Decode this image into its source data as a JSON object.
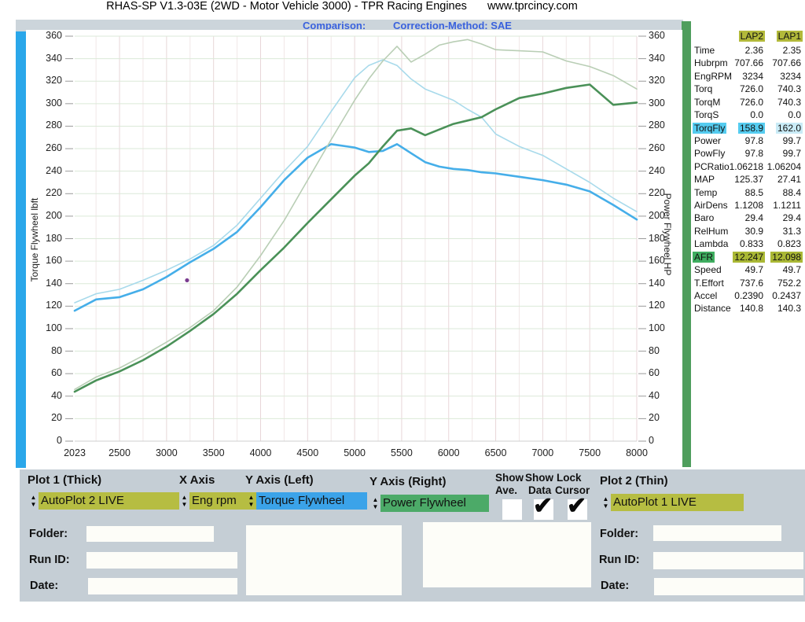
{
  "title": {
    "text": "RHAS-SP V1.3-03E  (2WD - Motor Vehicle 3000) - TPR Racing Engines",
    "url": "www.tprcincy.com"
  },
  "subtitle": {
    "comparison": "Comparison:",
    "correction": "Correction-Method: SAE"
  },
  "icons": {
    "spinner_up": "▲",
    "spinner_down": "▼",
    "check_glyph": "✔"
  },
  "colors": {
    "left_strip": "#2aa7ea",
    "right_strip": "#4f9e5d",
    "panel": "#c5ced5",
    "olive": "#b6bd42",
    "dropdown_blue": "#3ba3e9",
    "dropdown_green": "#4caa68",
    "hl_cyan": "#55ccf0",
    "hl_green": "#3fae60",
    "hl_olive": "#aab835",
    "subtitle_blue": "#3a62dd"
  },
  "chart_data": {
    "type": "line",
    "xlabel": "Eng rpm",
    "ylabel_left": "Torque Flywheel lbft",
    "ylabel_right": "Power Flywheel HP",
    "xlim": [
      2023,
      8000
    ],
    "ylim": [
      0,
      360
    ],
    "y_tick_step": 20,
    "x_ticks": [
      2023,
      2500,
      3000,
      3500,
      4000,
      4500,
      5000,
      5500,
      6000,
      6500,
      7000,
      7500,
      8000
    ],
    "grid": true,
    "x": [
      2023,
      2250,
      2500,
      2750,
      3000,
      3250,
      3500,
      3750,
      4000,
      4250,
      4500,
      4750,
      5000,
      5150,
      5300,
      5450,
      5600,
      5750,
      5900,
      6050,
      6200,
      6350,
      6500,
      6750,
      7000,
      7250,
      7500,
      7750,
      8000
    ],
    "series": [
      {
        "name": "LAP2 Torque Flywheel (thick)",
        "axis": "left",
        "color": "#45aee9",
        "width": 2.6,
        "values": [
          116,
          126,
          128,
          135,
          146,
          159,
          171,
          186,
          208,
          232,
          252,
          264,
          261,
          257,
          258,
          264,
          256,
          248,
          244,
          242,
          241,
          239,
          238,
          235,
          232,
          228,
          222,
          210,
          197
        ]
      },
      {
        "name": "LAP1 Torque Flywheel (thin)",
        "axis": "left",
        "color": "#a8daeb",
        "width": 1.6,
        "values": [
          123,
          131,
          135,
          143,
          152,
          162,
          174,
          192,
          216,
          240,
          262,
          293,
          323,
          334,
          339,
          334,
          322,
          313,
          308,
          303,
          295,
          288,
          273,
          262,
          254,
          242,
          230,
          216,
          204
        ]
      },
      {
        "name": "LAP2 Power Flywheel (thick)",
        "axis": "right",
        "color": "#4a9158",
        "width": 2.6,
        "values": [
          44,
          54,
          62,
          72,
          84,
          98,
          113,
          131,
          152,
          172,
          194,
          215,
          236,
          247,
          262,
          276,
          278,
          272,
          277,
          282,
          285,
          288,
          295,
          305,
          309,
          314,
          317,
          299,
          301
        ]
      },
      {
        "name": "LAP1 Power Flywheel (thin)",
        "axis": "right",
        "color": "#b9ceb5",
        "width": 1.6,
        "values": [
          46,
          57,
          65,
          76,
          88,
          101,
          116,
          137,
          165,
          196,
          232,
          268,
          303,
          322,
          338,
          351,
          337,
          344,
          352,
          355,
          357,
          353,
          348,
          347,
          346,
          338,
          333,
          325,
          313
        ]
      }
    ],
    "cursor_point": {
      "x": 3218,
      "y": 143,
      "color": "#7a3b8f"
    }
  },
  "table": {
    "headers": [
      "LAP2",
      "LAP1"
    ],
    "rows": [
      {
        "label": "Time",
        "lap2": "2.36",
        "lap1": "2.35",
        "hl": "none"
      },
      {
        "label": "Hubrpm",
        "lap2": "707.66",
        "lap1": "707.66",
        "hl": "none"
      },
      {
        "label": "EngRPM",
        "lap2": "3234",
        "lap1": "3234",
        "hl": "none"
      },
      {
        "label": "Torq",
        "lap2": "726.0",
        "lap1": "740.3",
        "hl": "none"
      },
      {
        "label": "TorqM",
        "lap2": "726.0",
        "lap1": "740.3",
        "hl": "none"
      },
      {
        "label": "TorqS",
        "lap2": "0.0",
        "lap1": "0.0",
        "hl": "none"
      },
      {
        "label": "TorqFly",
        "lap2": "158.9",
        "lap1": "162.0",
        "hl": "torqfly"
      },
      {
        "label": "Power",
        "lap2": "97.8",
        "lap1": "99.7",
        "hl": "none"
      },
      {
        "label": "PowFly",
        "lap2": "97.8",
        "lap1": "99.7",
        "hl": "none"
      },
      {
        "label": "PCRatio",
        "lap2": "1.06218",
        "lap1": "1.06204",
        "hl": "none"
      },
      {
        "label": "MAP",
        "lap2": "125.37",
        "lap1": "27.41",
        "hl": "none"
      },
      {
        "label": "Temp",
        "lap2": "88.5",
        "lap1": "88.4",
        "hl": "none"
      },
      {
        "label": "AirDens",
        "lap2": "1.1208",
        "lap1": "1.1211",
        "hl": "none"
      },
      {
        "label": "Baro",
        "lap2": "29.4",
        "lap1": "29.4",
        "hl": "none"
      },
      {
        "label": "RelHum",
        "lap2": "30.9",
        "lap1": "31.3",
        "hl": "none"
      },
      {
        "label": "Lambda",
        "lap2": "0.833",
        "lap1": "0.823",
        "hl": "none"
      },
      {
        "label": "AFR",
        "lap2": "12.247",
        "lap1": "12.098",
        "hl": "afr"
      },
      {
        "label": "Speed",
        "lap2": "49.7",
        "lap1": "49.7",
        "hl": "none"
      },
      {
        "label": "T.Effort",
        "lap2": "737.6",
        "lap1": "752.2",
        "hl": "none"
      },
      {
        "label": "Accel",
        "lap2": "0.2390",
        "lap1": "0.2437",
        "hl": "none"
      },
      {
        "label": "Distance",
        "lap2": "140.8",
        "lap1": "140.3",
        "hl": "none"
      }
    ]
  },
  "controls": {
    "plot1": {
      "label": "Plot 1 (Thick)",
      "value": "AutoPlot 2 LIVE"
    },
    "xaxis": {
      "label": "X Axis",
      "value": "Eng rpm"
    },
    "yleft": {
      "label": "Y Axis (Left)",
      "value": "Torque Flywheel"
    },
    "yright": {
      "label": "Y Axis (Right)",
      "value": "Power Flywheel"
    },
    "plot2": {
      "label": "Plot 2 (Thin)",
      "value": "AutoPlot 1 LIVE"
    },
    "checkboxes": [
      {
        "label1": "Show",
        "label2": "Ave.",
        "checked": false
      },
      {
        "label1": "Show",
        "label2": "Data",
        "checked": true
      },
      {
        "label1": "Lock",
        "label2": "Cursor",
        "checked": true
      }
    ]
  },
  "forms": {
    "left": {
      "folder": "Folder:",
      "runid": "Run ID:",
      "date": "Date:",
      "folder_value": "",
      "runid_value": "",
      "date_value": "",
      "notes": ""
    },
    "right": {
      "folder": "Folder:",
      "runid": "Run ID:",
      "date": "Date:",
      "folder_value": "",
      "runid_value": "",
      "date_value": "",
      "notes": ""
    }
  }
}
